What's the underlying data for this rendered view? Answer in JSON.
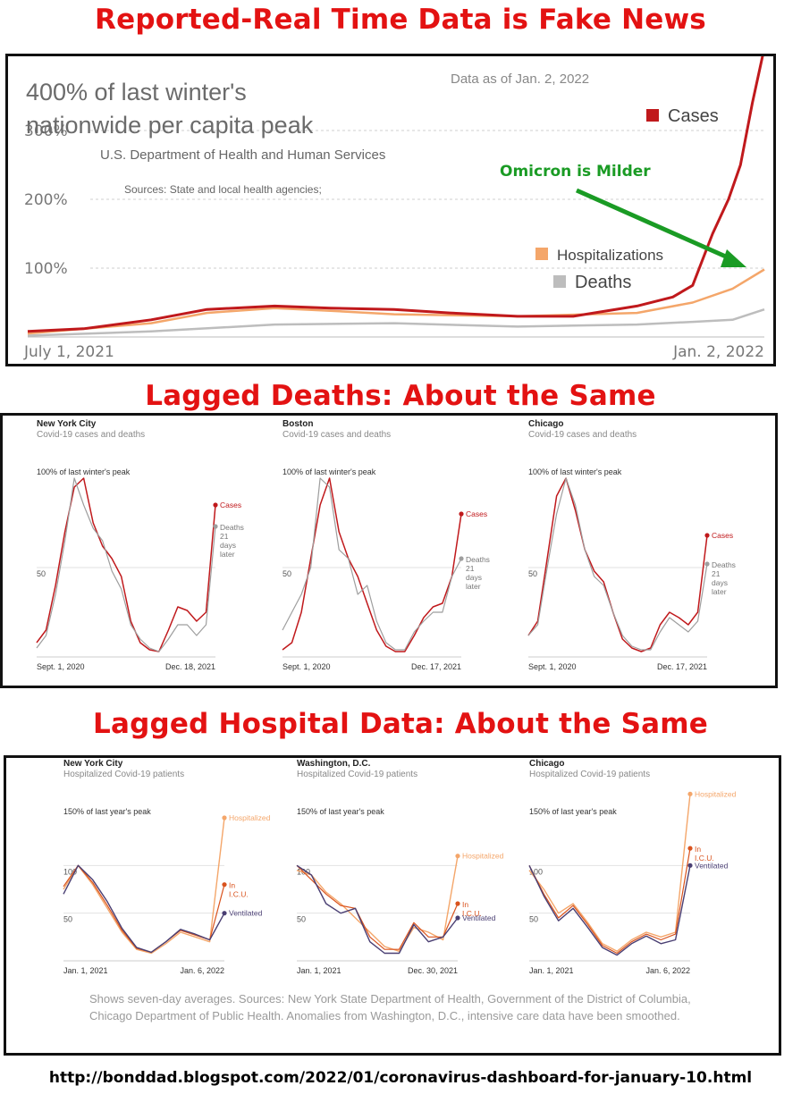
{
  "headings": {
    "top": "Reported-Real Time Data is Fake News",
    "middle": "Lagged Deaths: About the Same",
    "bottom": "Lagged Hospital Data: About the Same"
  },
  "colors": {
    "heading": "#e31212",
    "cases": "#c0191c",
    "hospitalizations": "#f4a66a",
    "deaths": "#bdbdbd",
    "icu": "#d9531e",
    "ventilated": "#4a3f73",
    "annotation": "#1a9b24"
  },
  "chart_data": [
    {
      "type": "line",
      "title": "400% of last winter's nationwide per capita peak",
      "subtitle": "U.S. Department of Health and Human Services",
      "source": "Sources: State and local health agencies;",
      "as_of": "Data as of Jan. 2, 2022",
      "annotation": "Omicron is Milder",
      "x_tick_labels": [
        "July 1, 2021",
        "Jan. 2, 2022"
      ],
      "y_tick_labels": [
        "100%",
        "200%",
        "300%"
      ],
      "ylim": [
        0,
        400
      ],
      "x_range": [
        "2021-07-01",
        "2022-01-02"
      ],
      "legend": [
        "Cases",
        "Hospitalizations",
        "Deaths"
      ],
      "series": [
        {
          "name": "Cases",
          "x": [
            "2021-07-01",
            "2021-07-15",
            "2021-08-01",
            "2021-08-15",
            "2021-09-01",
            "2021-09-15",
            "2021-10-01",
            "2021-10-15",
            "2021-11-01",
            "2021-11-15",
            "2021-12-01",
            "2021-12-10",
            "2021-12-15",
            "2021-12-20",
            "2021-12-24",
            "2021-12-27",
            "2021-12-30",
            "2022-01-02"
          ],
          "values": [
            8,
            12,
            25,
            40,
            45,
            42,
            40,
            35,
            30,
            30,
            45,
            58,
            75,
            150,
            200,
            250,
            340,
            420
          ]
        },
        {
          "name": "Hospitalizations",
          "x": [
            "2021-07-01",
            "2021-08-01",
            "2021-08-15",
            "2021-09-01",
            "2021-09-15",
            "2021-10-01",
            "2021-11-01",
            "2021-12-01",
            "2021-12-15",
            "2021-12-25",
            "2022-01-02"
          ],
          "values": [
            5,
            20,
            35,
            42,
            38,
            33,
            30,
            35,
            50,
            70,
            98
          ]
        },
        {
          "name": "Deaths",
          "x": [
            "2021-07-01",
            "2021-08-01",
            "2021-09-01",
            "2021-10-01",
            "2021-11-01",
            "2021-12-01",
            "2021-12-15",
            "2021-12-25",
            "2022-01-02"
          ],
          "values": [
            2,
            8,
            18,
            20,
            15,
            18,
            22,
            25,
            40
          ]
        }
      ]
    },
    {
      "type": "line",
      "city": "New York City",
      "subtitle": "Covid-19 cases and deaths",
      "y_label_top": "100% of last winter's peak",
      "y_tick_labels": [
        "50"
      ],
      "ylim": [
        0,
        100
      ],
      "x_tick_labels": [
        "Sept. 1, 2020",
        "Dec. 18, 2021"
      ],
      "series_labels": {
        "cases": "Cases",
        "deaths": "Deaths 21 days later"
      },
      "series": [
        {
          "name": "Cases",
          "values": [
            8,
            15,
            40,
            70,
            95,
            100,
            75,
            62,
            55,
            45,
            20,
            8,
            4,
            3,
            15,
            28,
            26,
            20,
            25,
            85
          ]
        },
        {
          "name": "Deaths",
          "values": [
            5,
            12,
            35,
            65,
            100,
            85,
            72,
            65,
            48,
            38,
            18,
            10,
            5,
            3,
            10,
            18,
            18,
            12,
            18,
            73
          ]
        }
      ]
    },
    {
      "type": "line",
      "city": "Boston",
      "subtitle": "Covid-19 cases and deaths",
      "y_label_top": "100% of last winter's peak",
      "y_tick_labels": [
        "50"
      ],
      "ylim": [
        0,
        100
      ],
      "x_tick_labels": [
        "Sept. 1, 2020",
        "Dec. 17, 2021"
      ],
      "series_labels": {
        "cases": "Cases",
        "deaths": "Deaths 21 days later"
      },
      "series": [
        {
          "name": "Cases",
          "values": [
            4,
            8,
            25,
            55,
            85,
            100,
            70,
            55,
            45,
            30,
            15,
            6,
            3,
            3,
            12,
            22,
            28,
            30,
            45,
            80
          ]
        },
        {
          "name": "Deaths",
          "values": [
            15,
            25,
            35,
            50,
            100,
            95,
            60,
            55,
            35,
            40,
            20,
            8,
            4,
            4,
            14,
            20,
            25,
            25,
            45,
            55
          ]
        }
      ]
    },
    {
      "type": "line",
      "city": "Chicago",
      "subtitle": "Covid-19 cases and deaths",
      "y_label_top": "100% of last winter's peak",
      "y_tick_labels": [
        "50"
      ],
      "ylim": [
        0,
        100
      ],
      "x_tick_labels": [
        "Sept. 1, 2020",
        "Dec. 17, 2021"
      ],
      "series_labels": {
        "cases": "Cases",
        "deaths": "Deaths 21 days later"
      },
      "series": [
        {
          "name": "Cases",
          "values": [
            12,
            20,
            55,
            90,
            100,
            82,
            60,
            48,
            42,
            25,
            10,
            5,
            3,
            5,
            18,
            25,
            22,
            18,
            25,
            68
          ]
        },
        {
          "name": "Deaths",
          "values": [
            12,
            18,
            50,
            80,
            100,
            85,
            60,
            45,
            40,
            25,
            12,
            6,
            4,
            4,
            14,
            22,
            18,
            14,
            20,
            52
          ]
        }
      ]
    },
    {
      "type": "line",
      "city": "New York City",
      "subtitle": "Hospitalized Covid-19 patients",
      "y_label_top": "150% of last year's peak",
      "y_tick_labels": [
        "100",
        "50"
      ],
      "ylim": [
        0,
        150
      ],
      "x_tick_labels": [
        "Jan. 1, 2021",
        "Jan. 6, 2022"
      ],
      "series_labels": {
        "hospitalized": "Hospitalized",
        "icu": "In I.C.U.",
        "ventilated": "Ventilated"
      },
      "series": [
        {
          "name": "Hospitalized",
          "values": [
            75,
            100,
            80,
            55,
            30,
            12,
            8,
            18,
            30,
            25,
            20,
            150
          ]
        },
        {
          "name": "In I.C.U.",
          "values": [
            78,
            100,
            82,
            58,
            32,
            13,
            9,
            20,
            32,
            27,
            22,
            80
          ]
        },
        {
          "name": "Ventilated",
          "values": [
            70,
            100,
            85,
            62,
            34,
            14,
            9,
            20,
            33,
            28,
            22,
            50
          ]
        }
      ]
    },
    {
      "type": "line",
      "city": "Washington, D.C.",
      "subtitle": "Hospitalized Covid-19 patients",
      "y_label_top": "150% of last year's peak",
      "y_tick_labels": [
        "100",
        "50"
      ],
      "ylim": [
        0,
        150
      ],
      "x_tick_labels": [
        "Jan. 1, 2021",
        "Dec. 30, 2021"
      ],
      "series_labels": {
        "hospitalized": "Hospitalized",
        "icu": "In I.C.U.",
        "ventilated": "Ventilated"
      },
      "series": [
        {
          "name": "Hospitalized",
          "values": [
            95,
            90,
            72,
            60,
            45,
            30,
            15,
            10,
            35,
            30,
            22,
            110
          ]
        },
        {
          "name": "In I.C.U.",
          "values": [
            100,
            85,
            70,
            58,
            55,
            25,
            12,
            12,
            40,
            25,
            25,
            60
          ]
        },
        {
          "name": "Ventilated",
          "values": [
            100,
            90,
            60,
            50,
            55,
            20,
            8,
            8,
            38,
            20,
            25,
            45
          ]
        }
      ]
    },
    {
      "type": "line",
      "city": "Chicago",
      "subtitle": "Hospitalized Covid-19 patients",
      "y_label_top": "150% of last year's peak",
      "y_tick_labels": [
        "100",
        "50"
      ],
      "ylim": [
        0,
        150
      ],
      "x_tick_labels": [
        "Jan. 1, 2021",
        "Jan. 6, 2022"
      ],
      "series_labels": {
        "hospitalized": "Hospitalized",
        "icu": "In I.C.U.",
        "ventilated": "Ventilated"
      },
      "series": [
        {
          "name": "Hospitalized",
          "values": [
            95,
            75,
            50,
            60,
            40,
            18,
            10,
            22,
            30,
            25,
            30,
            175
          ]
        },
        {
          "name": "In I.C.U.",
          "values": [
            100,
            70,
            45,
            58,
            38,
            16,
            8,
            20,
            28,
            22,
            28,
            118
          ]
        },
        {
          "name": "Ventilated",
          "values": [
            100,
            68,
            42,
            55,
            35,
            14,
            6,
            18,
            26,
            18,
            22,
            100
          ]
        }
      ]
    }
  ],
  "footnote": "Shows seven-day averages. Sources: New York State Department of Health, Government of the District of Columbia, Chicago Department of Public Health. Anomalies from Washington, D.C., intensive care data have been smoothed.",
  "url": "http://bonddad.blogspot.com/2022/01/coronavirus-dashboard-for-january-10.html"
}
